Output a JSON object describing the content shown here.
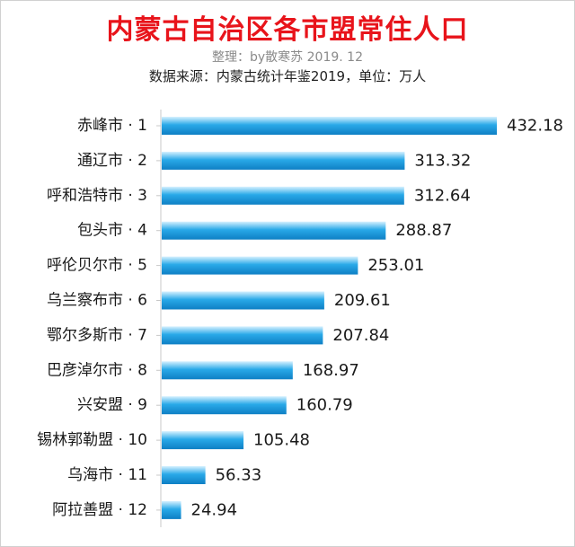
{
  "chart_data": {
    "type": "bar",
    "orientation": "horizontal",
    "title": "内蒙古自治区各市盟常住人口",
    "subtitle": "整理：by散寒苏  2019. 12",
    "source": "数据来源：内蒙古统计年鉴2019，单位：万人",
    "categories": [
      "赤峰市 · 1",
      "通辽市 · 2",
      "呼和浩特市 · 3",
      "包头市 · 4",
      "呼伦贝尔市 · 5",
      "乌兰察布市 · 6",
      "鄂尔多斯市 · 7",
      "巴彦淖尔市 · 8",
      "兴安盟 · 9",
      "锡林郭勒盟 · 10",
      "乌海市 · 11",
      "阿拉善盟 · 12"
    ],
    "values": [
      432.18,
      313.32,
      312.64,
      288.87,
      253.01,
      209.61,
      207.84,
      168.97,
      160.79,
      105.48,
      56.33,
      24.94
    ],
    "value_labels": [
      "432.18",
      "313.32",
      "312.64",
      "288.87",
      "253.01",
      "209.61",
      "207.84",
      "168.97",
      "160.79",
      "105.48",
      "56.33",
      "24.94"
    ],
    "xlim": [
      0,
      432.18
    ],
    "grid": false,
    "legend": "none",
    "bar_color": "#29a9e8"
  }
}
